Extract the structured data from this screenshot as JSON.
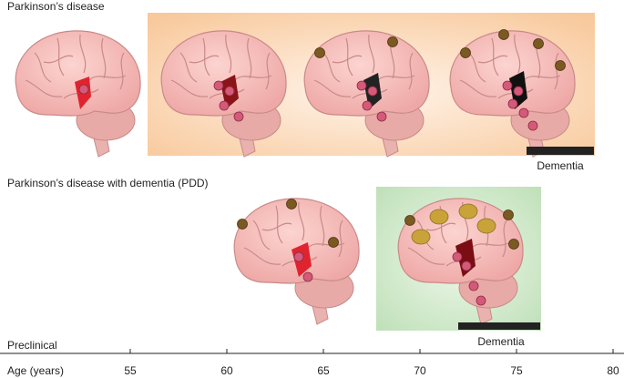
{
  "sections": [
    {
      "title": "Parkinson’s disease",
      "label": "Dementia"
    },
    {
      "title": "Parkinson’s disease with dementia (PDD)",
      "label": "Dementia"
    }
  ],
  "timeline": {
    "label": "Preclinical",
    "axis_label": "Age (years)",
    "ticks": [
      55,
      60,
      65,
      70,
      75,
      80
    ]
  }
}
